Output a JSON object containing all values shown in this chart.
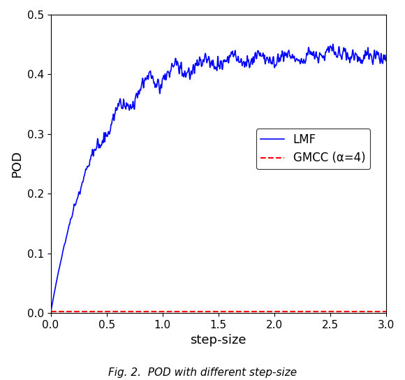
{
  "title": "",
  "xlabel": "step-size",
  "ylabel": "POD",
  "xlim": [
    0,
    3
  ],
  "ylim": [
    0,
    0.5
  ],
  "xticks": [
    0,
    0.5,
    1,
    1.5,
    2,
    2.5,
    3
  ],
  "yticks": [
    0,
    0.1,
    0.2,
    0.3,
    0.4,
    0.5
  ],
  "lmf_color": "#0000FF",
  "gmcc_color": "#FF0000",
  "legend_labels": [
    "LMF",
    "GMCC (α=4)"
  ],
  "figcaption": "Fig. 2.  POD with different step-size",
  "background_color": "#FFFFFF",
  "seed": 42
}
